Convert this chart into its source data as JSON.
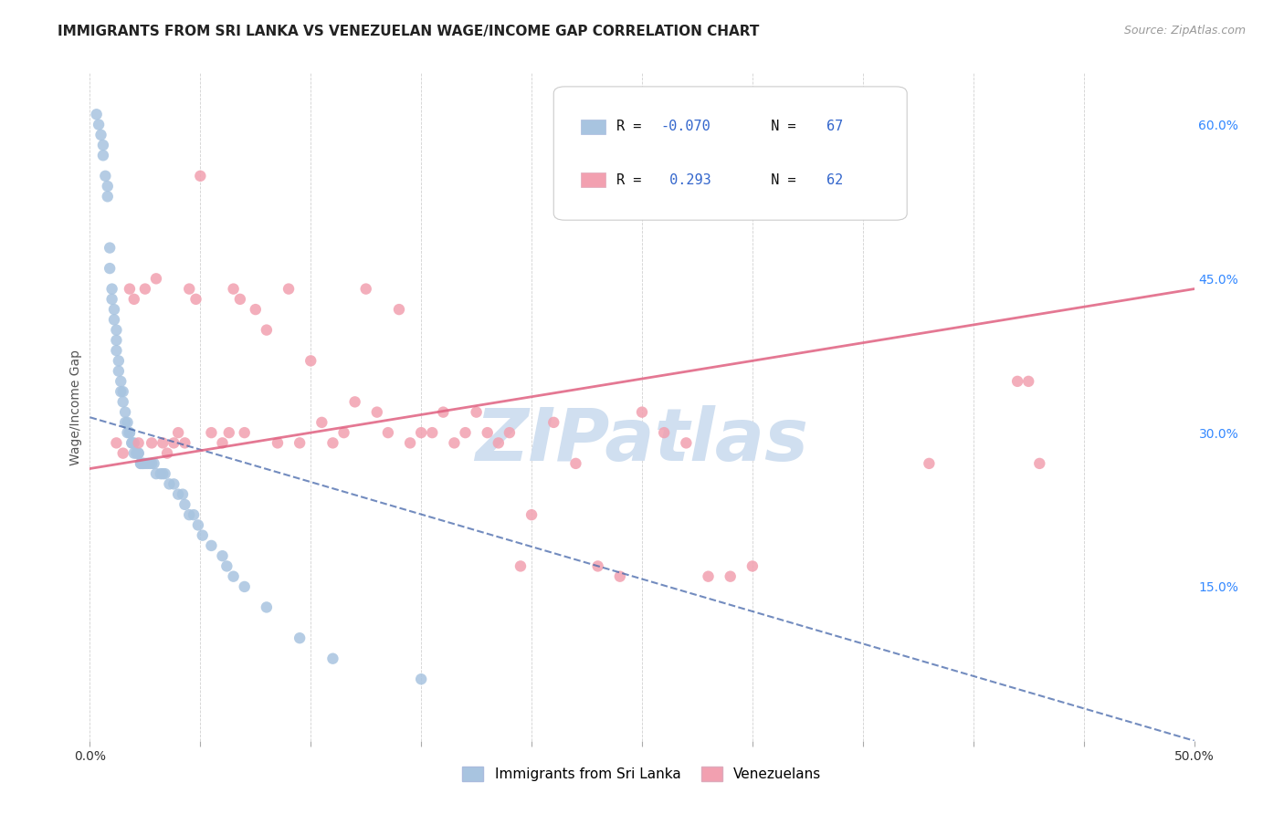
{
  "title": "IMMIGRANTS FROM SRI LANKA VS VENEZUELAN WAGE/INCOME GAP CORRELATION CHART",
  "source": "Source: ZipAtlas.com",
  "ylabel": "Wage/Income Gap",
  "xlim": [
    0.0,
    0.5
  ],
  "ylim": [
    0.0,
    0.65
  ],
  "y_ticks_right": [
    0.15,
    0.3,
    0.45,
    0.6
  ],
  "y_tick_labels_right": [
    "15.0%",
    "30.0%",
    "45.0%",
    "60.0%"
  ],
  "sri_lanka_R": "-0.070",
  "sri_lanka_N": "67",
  "venezuela_R": "0.293",
  "venezuela_N": "62",
  "legend_label1": "Immigrants from Sri Lanka",
  "legend_label2": "Venezuelans",
  "sri_lanka_color": "#a8c4e0",
  "venezuela_color": "#f2a0b0",
  "sri_lanka_line_color": "#4466aa",
  "venezuela_line_color": "#e06080",
  "watermark": "ZIPatlas",
  "watermark_color": "#d0dff0",
  "sl_line_x0": 0.0,
  "sl_line_y0": 0.315,
  "sl_line_x1": 0.5,
  "sl_line_y1": 0.0,
  "vz_line_x0": 0.0,
  "vz_line_y0": 0.265,
  "vz_line_x1": 0.5,
  "vz_line_y1": 0.44,
  "sri_lanka_x": [
    0.003,
    0.004,
    0.005,
    0.006,
    0.006,
    0.007,
    0.008,
    0.008,
    0.009,
    0.009,
    0.01,
    0.01,
    0.011,
    0.011,
    0.012,
    0.012,
    0.012,
    0.013,
    0.013,
    0.014,
    0.014,
    0.015,
    0.015,
    0.016,
    0.016,
    0.017,
    0.017,
    0.018,
    0.018,
    0.019,
    0.019,
    0.02,
    0.02,
    0.021,
    0.022,
    0.022,
    0.023,
    0.023,
    0.024,
    0.024,
    0.025,
    0.026,
    0.027,
    0.028,
    0.029,
    0.03,
    0.032,
    0.033,
    0.034,
    0.036,
    0.038,
    0.04,
    0.042,
    0.043,
    0.045,
    0.047,
    0.049,
    0.051,
    0.055,
    0.06,
    0.062,
    0.065,
    0.07,
    0.08,
    0.095,
    0.11,
    0.15
  ],
  "sri_lanka_y": [
    0.61,
    0.6,
    0.59,
    0.58,
    0.57,
    0.55,
    0.54,
    0.53,
    0.48,
    0.46,
    0.44,
    0.43,
    0.42,
    0.41,
    0.4,
    0.39,
    0.38,
    0.37,
    0.36,
    0.35,
    0.34,
    0.34,
    0.33,
    0.32,
    0.31,
    0.31,
    0.3,
    0.3,
    0.3,
    0.29,
    0.29,
    0.29,
    0.28,
    0.28,
    0.28,
    0.28,
    0.27,
    0.27,
    0.27,
    0.27,
    0.27,
    0.27,
    0.27,
    0.27,
    0.27,
    0.26,
    0.26,
    0.26,
    0.26,
    0.25,
    0.25,
    0.24,
    0.24,
    0.23,
    0.22,
    0.22,
    0.21,
    0.2,
    0.19,
    0.18,
    0.17,
    0.16,
    0.15,
    0.13,
    0.1,
    0.08,
    0.06
  ],
  "venezuela_x": [
    0.012,
    0.015,
    0.018,
    0.02,
    0.022,
    0.025,
    0.028,
    0.03,
    0.033,
    0.035,
    0.038,
    0.04,
    0.043,
    0.045,
    0.048,
    0.05,
    0.055,
    0.06,
    0.063,
    0.065,
    0.068,
    0.07,
    0.075,
    0.08,
    0.085,
    0.09,
    0.095,
    0.1,
    0.105,
    0.11,
    0.115,
    0.12,
    0.125,
    0.13,
    0.135,
    0.14,
    0.145,
    0.15,
    0.155,
    0.16,
    0.165,
    0.17,
    0.175,
    0.18,
    0.185,
    0.19,
    0.195,
    0.2,
    0.21,
    0.22,
    0.23,
    0.24,
    0.25,
    0.26,
    0.27,
    0.28,
    0.29,
    0.3,
    0.38,
    0.42,
    0.425,
    0.43
  ],
  "venezuela_y": [
    0.29,
    0.28,
    0.44,
    0.43,
    0.29,
    0.44,
    0.29,
    0.45,
    0.29,
    0.28,
    0.29,
    0.3,
    0.29,
    0.44,
    0.43,
    0.55,
    0.3,
    0.29,
    0.3,
    0.44,
    0.43,
    0.3,
    0.42,
    0.4,
    0.29,
    0.44,
    0.29,
    0.37,
    0.31,
    0.29,
    0.3,
    0.33,
    0.44,
    0.32,
    0.3,
    0.42,
    0.29,
    0.3,
    0.3,
    0.32,
    0.29,
    0.3,
    0.32,
    0.3,
    0.29,
    0.3,
    0.17,
    0.22,
    0.31,
    0.27,
    0.17,
    0.16,
    0.32,
    0.3,
    0.29,
    0.16,
    0.16,
    0.17,
    0.27,
    0.35,
    0.35,
    0.27
  ]
}
